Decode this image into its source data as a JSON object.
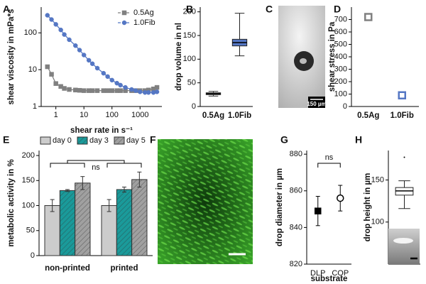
{
  "chart_data": [
    {
      "panel": "A",
      "type": "line",
      "xlabel": "shear rate in s⁻¹",
      "ylabel": "shear viscosity in mPa*s",
      "xscale": "log",
      "yscale": "log",
      "xlim": [
        0.3,
        6000
      ],
      "ylim": [
        1,
        500
      ],
      "xticks": [
        1,
        10,
        100,
        1000
      ],
      "yticks": [
        1,
        10,
        100
      ],
      "legend": "upper right",
      "x": [
        0.5,
        0.7,
        1,
        1.5,
        2,
        3,
        5,
        7,
        10,
        15,
        20,
        30,
        50,
        70,
        100,
        150,
        200,
        300,
        500,
        700,
        1000,
        1500,
        2000,
        3000,
        4000
      ],
      "series": [
        {
          "name": "0.5Ag",
          "color": "#808080",
          "marker": "square",
          "values": [
            12,
            7.5,
            4.2,
            3.5,
            3.1,
            2.9,
            2.8,
            2.75,
            2.7,
            2.7,
            2.7,
            2.7,
            2.7,
            2.7,
            2.7,
            2.7,
            2.7,
            2.7,
            2.7,
            2.7,
            2.7,
            2.7,
            2.8,
            3.0,
            3.3
          ]
        },
        {
          "name": "1.0Fib",
          "color": "#5577c4",
          "marker": "circle",
          "values": [
            300,
            230,
            170,
            120,
            90,
            65,
            45,
            34,
            25,
            18,
            14.5,
            11,
            8,
            6.5,
            5.2,
            4.3,
            3.8,
            3.3,
            2.9,
            2.7,
            2.5,
            2.4,
            2.4,
            2.4,
            2.5
          ]
        }
      ]
    },
    {
      "panel": "B",
      "type": "box",
      "ylabel": "drop volume in nl",
      "categories": [
        "0.5Ag",
        "1.0Fib"
      ],
      "ylim": [
        0,
        210
      ],
      "yticks": [
        0,
        50,
        100,
        150,
        200
      ],
      "boxes": [
        {
          "whislo": 22,
          "q1": 25,
          "med": 27,
          "q3": 29,
          "whishi": 32,
          "color": "#333333",
          "fill": "#555555"
        },
        {
          "whislo": 107,
          "q1": 128,
          "med": 135,
          "q3": 142,
          "whishi": 197,
          "color": "#222222",
          "fill": "#5577c4"
        }
      ]
    },
    {
      "panel": "D",
      "type": "point",
      "ylabel": "shear stress in Pa",
      "categories": [
        "0.5Ag",
        "1.0Fib"
      ],
      "values": [
        720,
        90
      ],
      "colors": [
        "#808080",
        "#5577c4"
      ],
      "markers": [
        "open-square",
        "open-square"
      ],
      "ylim": [
        0,
        800
      ],
      "yticks": [
        0,
        100,
        200,
        300,
        400,
        500,
        600,
        700
      ]
    },
    {
      "panel": "E",
      "type": "bar",
      "ylabel": "metabolic activity in %",
      "categories": [
        "non-printed",
        "printed"
      ],
      "annotation": "ns",
      "legend": "top",
      "ylim": [
        0,
        210
      ],
      "yticks": [
        0,
        50,
        100,
        150,
        200
      ],
      "series": [
        {
          "name": "day 0",
          "color": "#cccccc",
          "hatch": false,
          "values": [
            100,
            100
          ],
          "errors": [
            12,
            12
          ]
        },
        {
          "name": "day 3",
          "color": "#1a9a9a",
          "hatch": true,
          "values": [
            130,
            132
          ],
          "errors": [
            2,
            5
          ]
        },
        {
          "name": "day 5",
          "color": "#a0a0a0",
          "hatch": true,
          "values": [
            145,
            152
          ],
          "errors": [
            13,
            15
          ]
        }
      ]
    },
    {
      "panel": "G",
      "type": "point",
      "ylabel": "drop diameter in µm",
      "xlabel": "substrate",
      "categories": [
        "DLP",
        "COP"
      ],
      "values": [
        849,
        856
      ],
      "errors": [
        8,
        7
      ],
      "colors": [
        "#000000",
        "#000000"
      ],
      "markers": [
        "filled-square",
        "open-circle"
      ],
      "annotation": "ns",
      "ylim": [
        820,
        882
      ],
      "yticks": [
        820,
        840,
        860,
        880
      ]
    },
    {
      "panel": "H",
      "type": "box",
      "ylabel": "drop height in µm",
      "ylim": [
        50,
        185
      ],
      "yticks": [
        100,
        150
      ],
      "boxes": [
        {
          "whislo": 116,
          "q1": 132,
          "med": 137,
          "q3": 141,
          "whishi": 149,
          "fliers": [
            177
          ],
          "color": "#222222",
          "fill": "#ffffff"
        }
      ]
    }
  ],
  "image_panels": [
    {
      "panel": "C",
      "scale_bar": "150 µm"
    },
    {
      "panel": "F"
    }
  ]
}
